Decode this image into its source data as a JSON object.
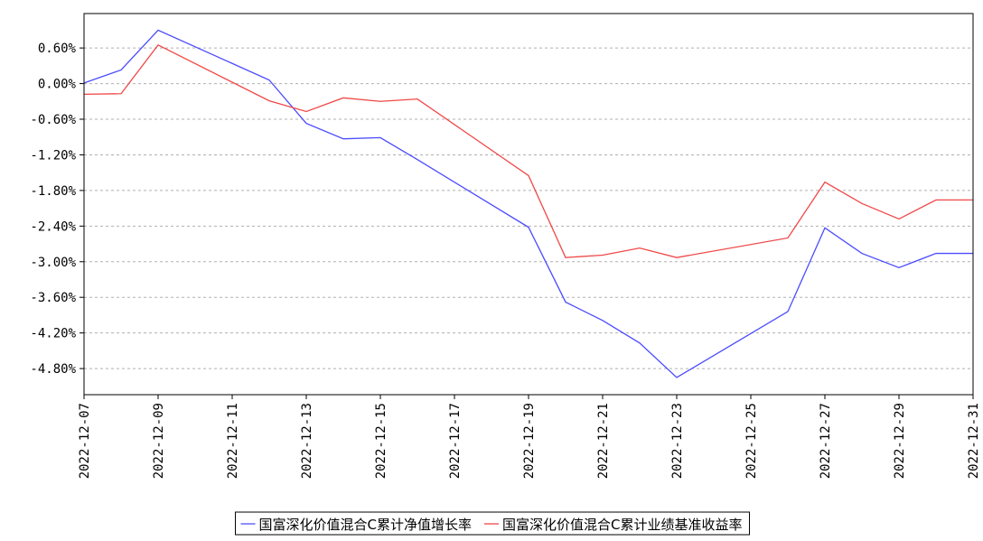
{
  "chart_data": {
    "type": "line",
    "x": [
      "2022-12-07",
      "2022-12-08",
      "2022-12-09",
      "2022-12-12",
      "2022-12-13",
      "2022-12-14",
      "2022-12-15",
      "2022-12-16",
      "2022-12-19",
      "2022-12-20",
      "2022-12-21",
      "2022-12-22",
      "2022-12-23",
      "2022-12-26",
      "2022-12-27",
      "2022-12-28",
      "2022-12-29",
      "2022-12-30",
      "2022-12-31"
    ],
    "xlim": [
      "2022-12-07",
      "2022-12-31"
    ],
    "xticks": [
      "2022-12-07",
      "2022-12-09",
      "2022-12-11",
      "2022-12-13",
      "2022-12-15",
      "2022-12-17",
      "2022-12-19",
      "2022-12-21",
      "2022-12-23",
      "2022-12-25",
      "2022-12-27",
      "2022-12-29",
      "2022-12-31"
    ],
    "ylim": [
      -5.24,
      1.18
    ],
    "yticks": [
      {
        "value": 0.6,
        "label": "0.60%"
      },
      {
        "value": 0,
        "label": "0.00%"
      },
      {
        "value": -0.6,
        "label": "-0.60%"
      },
      {
        "value": -1.2,
        "label": "-1.20%"
      },
      {
        "value": -1.8,
        "label": "-1.80%"
      },
      {
        "value": -2.4,
        "label": "-2.40%"
      },
      {
        "value": -3.0,
        "label": "-3.00%"
      },
      {
        "value": -3.6,
        "label": "-3.60%"
      },
      {
        "value": -4.2,
        "label": "-4.20%"
      },
      {
        "value": -4.8,
        "label": "-4.80%"
      }
    ],
    "grid": true,
    "series": [
      {
        "name": "国富深化价值混合C累计净值增长率",
        "color": "#4b4bff",
        "values": [
          0.01,
          0.23,
          0.9,
          0.06,
          -0.67,
          -0.93,
          -0.91,
          -1.28,
          -2.42,
          -3.68,
          -3.99,
          -4.37,
          -4.95,
          -3.84,
          -2.43,
          -2.86,
          -3.1,
          -2.86,
          -2.86
        ]
      },
      {
        "name": "国富深化价值混合C累计业绩基准收益率",
        "color": "#f04848",
        "values": [
          -0.18,
          -0.17,
          0.65,
          -0.29,
          -0.47,
          -0.24,
          -0.3,
          -0.26,
          -1.55,
          -2.93,
          -2.89,
          -2.77,
          -2.93,
          -2.6,
          -1.66,
          -2.02,
          -2.28,
          -1.96,
          -1.96
        ]
      }
    ]
  }
}
